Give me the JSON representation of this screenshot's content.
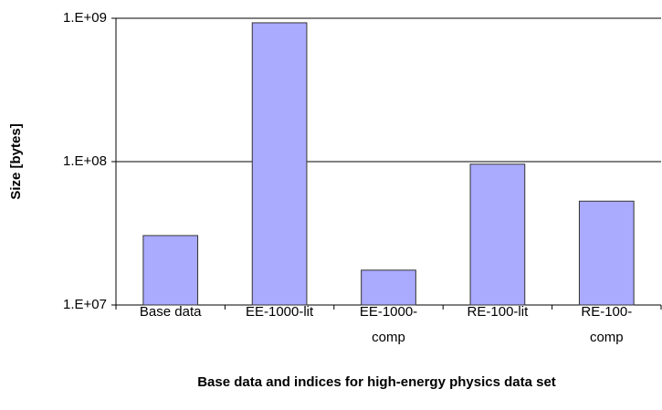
{
  "chart_data": {
    "type": "bar",
    "x_label": "Base data and indices for high-energy physics data set",
    "y_label": "Size [bytes]",
    "categories": [
      "Base data",
      "EE-1000-lit",
      "EE-1000-comp",
      "RE-100-lit",
      "RE-100-comp"
    ],
    "values": [
      30500000,
      930000000,
      17500000,
      96000000,
      53000000
    ],
    "color": "#aaaaff",
    "log_scale": true,
    "ylim": [
      10000000,
      1000000000
    ],
    "yticks": [
      {
        "value": 10000000,
        "label": "1.E+07"
      },
      {
        "value": 100000000,
        "label": "1.E+08"
      },
      {
        "value": 1000000000,
        "label": "1.E+09"
      }
    ],
    "grid": true
  }
}
